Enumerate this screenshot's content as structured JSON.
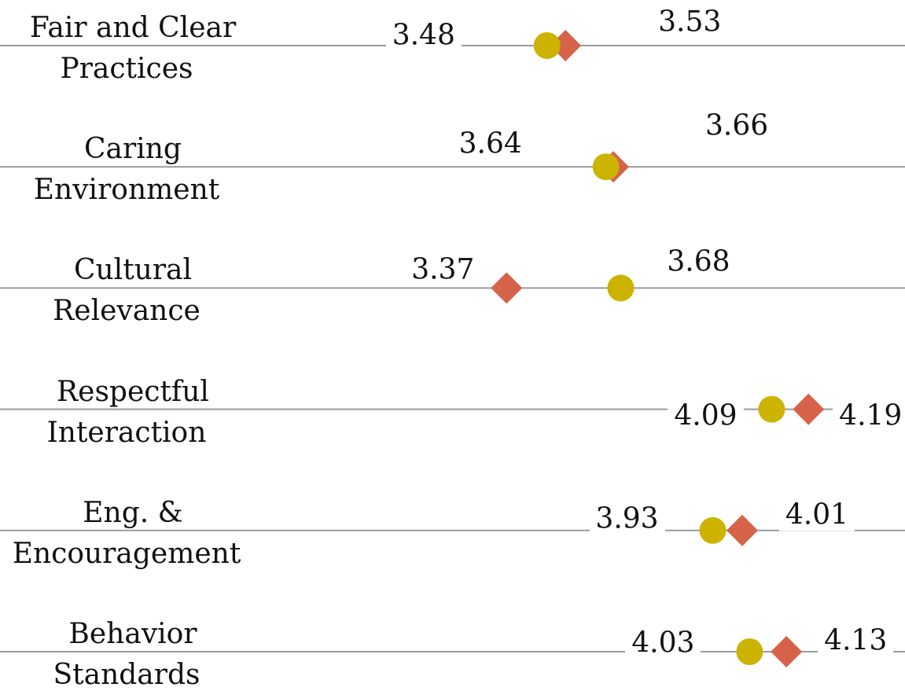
{
  "chart_data": {
    "type": "dot",
    "categories": [
      "Fair and Clear Practices",
      "Caring Environment",
      "Cultural Relevance",
      "Respectful Interaction",
      "Eng. & Encouragement",
      "Behavior Standards"
    ],
    "series": [
      {
        "marker": "circle",
        "color": "#ccb300",
        "values": [
          3.48,
          3.64,
          3.68,
          4.09,
          3.93,
          4.03
        ]
      },
      {
        "marker": "diamond",
        "color": "#d5634a",
        "values": [
          3.53,
          3.66,
          3.37,
          4.19,
          4.01,
          4.13
        ]
      }
    ],
    "xlim": [
      3.0,
      4.4
    ]
  }
}
